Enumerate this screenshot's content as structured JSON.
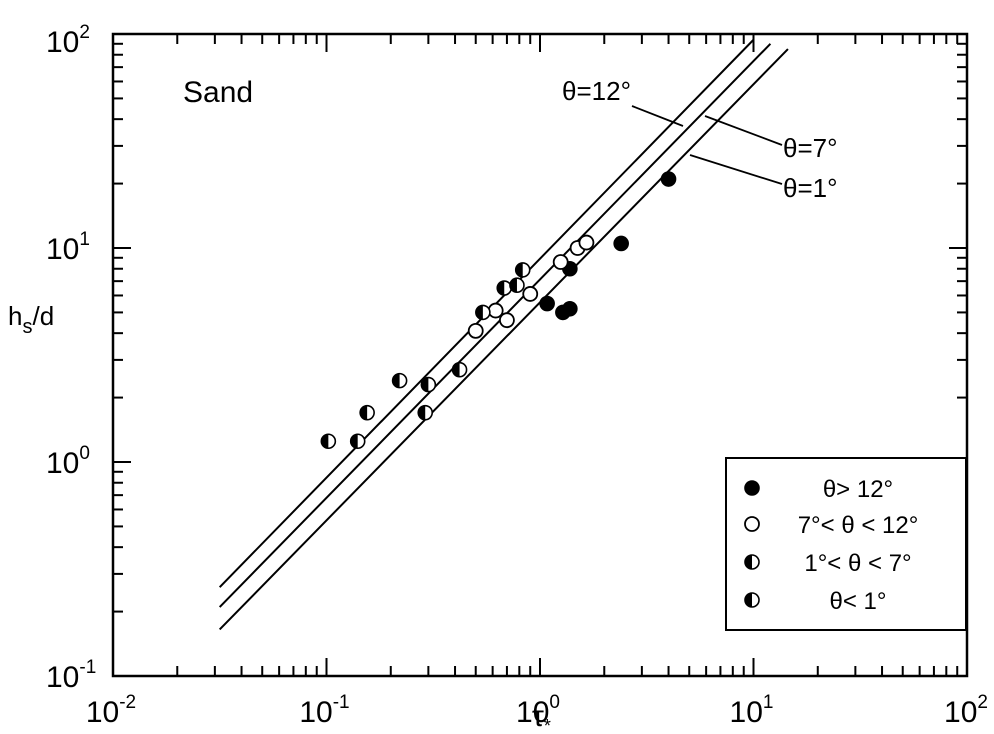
{
  "chart_data": {
    "type": "scatter",
    "xscale": "log",
    "yscale": "log",
    "xlim": [
      0.01,
      100
    ],
    "ylim": [
      0.1,
      100
    ],
    "xlabel": "τ*",
    "ylabel": "hs/d",
    "x_ticks": [
      {
        "base": "10",
        "exp": "-2",
        "value": 0.01
      },
      {
        "base": "10",
        "exp": "-1",
        "value": 0.1
      },
      {
        "base": "10",
        "exp": "0",
        "value": 1
      },
      {
        "base": "10",
        "exp": "1",
        "value": 10
      },
      {
        "base": "10",
        "exp": "2",
        "value": 100
      }
    ],
    "y_ticks": [
      {
        "base": "10",
        "exp": "-1",
        "value": 0.1
      },
      {
        "base": "10",
        "exp": "0",
        "value": 1
      },
      {
        "base": "10",
        "exp": "1",
        "value": 10
      },
      {
        "base": "10",
        "exp": "2",
        "value": 100
      }
    ],
    "panel_label": "Sand",
    "lines": [
      {
        "label": "θ=12°",
        "points": [
          [
            0.0316,
            0.26
          ],
          [
            10.0,
            94.0
          ]
        ]
      },
      {
        "label": "θ=7°",
        "points": [
          [
            0.0316,
            0.21
          ],
          [
            12.0,
            90.0
          ]
        ]
      },
      {
        "label": "θ=1°",
        "points": [
          [
            0.0316,
            0.165
          ],
          [
            14.5,
            85.0
          ]
        ]
      }
    ],
    "series": [
      {
        "name": "θ> 12°",
        "marker": "filled",
        "points": [
          [
            1.08,
            5.5
          ],
          [
            1.28,
            5.0
          ],
          [
            1.38,
            5.2
          ],
          [
            1.38,
            8.0
          ],
          [
            2.4,
            10.5
          ],
          [
            4.0,
            21.0
          ]
        ]
      },
      {
        "name": "7°< θ < 12°",
        "marker": "open",
        "points": [
          [
            0.5,
            4.1
          ],
          [
            0.62,
            5.1
          ],
          [
            0.7,
            4.6
          ],
          [
            0.9,
            6.1
          ],
          [
            1.25,
            8.6
          ],
          [
            1.5,
            10.0
          ],
          [
            1.65,
            10.6
          ]
        ]
      },
      {
        "name": "1°< θ < 7°",
        "marker": "half-left",
        "points": [
          [
            0.155,
            1.7
          ],
          [
            0.22,
            2.4
          ],
          [
            0.29,
            1.7
          ],
          [
            0.3,
            2.3
          ],
          [
            0.68,
            6.5
          ],
          [
            0.78,
            6.7
          ],
          [
            0.83,
            7.9
          ]
        ]
      },
      {
        "name": "θ< 1°",
        "marker": "half-top",
        "points": [
          [
            0.102,
            1.25
          ],
          [
            0.14,
            1.25
          ],
          [
            0.42,
            2.7
          ],
          [
            0.54,
            5.0
          ]
        ]
      }
    ]
  },
  "legend": {
    "placement": "bottom-right",
    "entries": [
      "θ> 12°",
      "7°< θ < 12°",
      "1°< θ < 7°",
      "θ< 1°"
    ]
  }
}
